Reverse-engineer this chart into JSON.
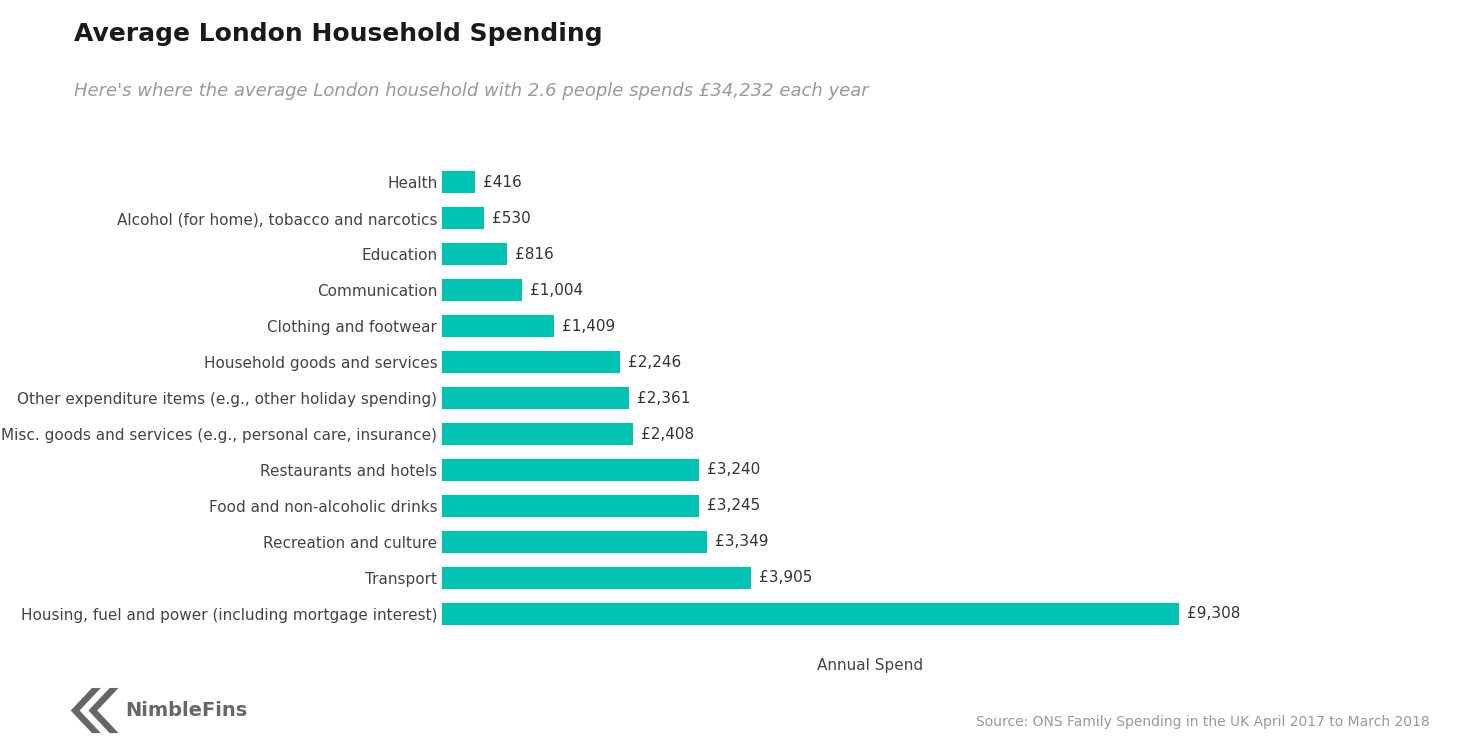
{
  "title": "Average London Household Spending",
  "subtitle": "Here's where the average London household with 2.6 people spends £34,232 each year",
  "categories": [
    "Health",
    "Alcohol (for home), tobacco and narcotics",
    "Education",
    "Communication",
    "Clothing and footwear",
    "Household goods and services",
    "Other expenditure items (e.g., other holiday spending)",
    "Misc. goods and services (e.g., personal care, insurance)",
    "Restaurants and hotels",
    "Food and non-alcoholic drinks",
    "Recreation and culture",
    "Transport",
    "Housing, fuel and power (including mortgage interest)"
  ],
  "values": [
    416,
    530,
    816,
    1004,
    1409,
    2246,
    2361,
    2408,
    3240,
    3245,
    3349,
    3905,
    9308
  ],
  "labels": [
    "£416",
    "£530",
    "£816",
    "£1,004",
    "£1,409",
    "£2,246",
    "£2,361",
    "£2,408",
    "£3,240",
    "£3,245",
    "£3,349",
    "£3,905",
    "£9,308"
  ],
  "bar_color": "#00C4B3",
  "background_color": "#ffffff",
  "xlabel": "Annual Spend",
  "source_text": "Source: ONS Family Spending in the UK April 2017 to March 2018",
  "title_fontsize": 18,
  "subtitle_fontsize": 13,
  "label_fontsize": 11,
  "axis_fontsize": 11,
  "source_fontsize": 10,
  "logo_text": "NimbleFins",
  "logo_color": "#555555"
}
